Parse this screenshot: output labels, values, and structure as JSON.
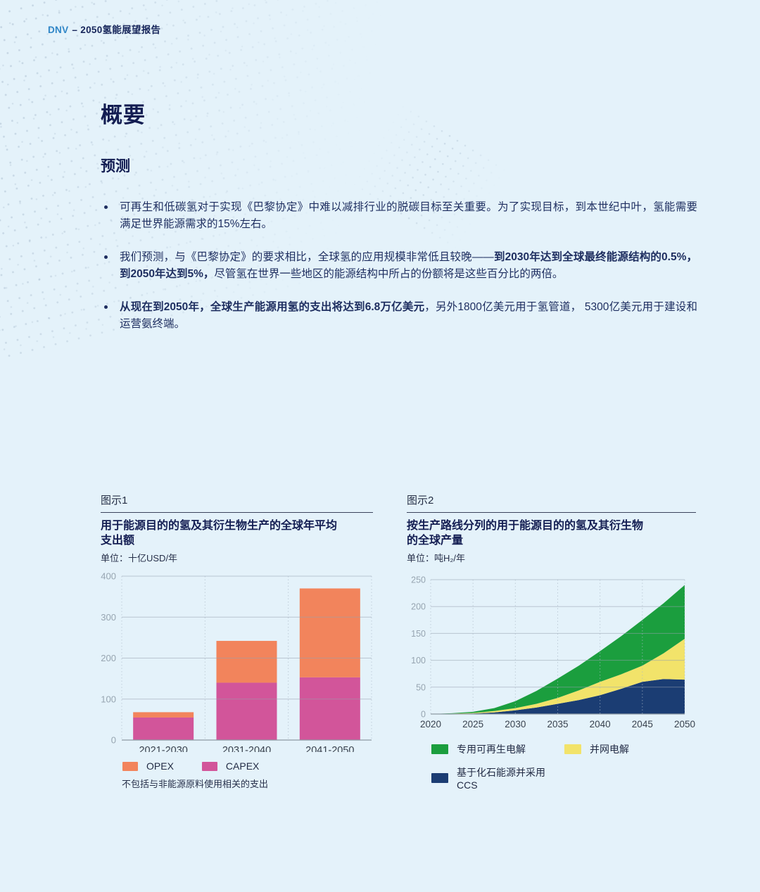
{
  "header": {
    "brand": "DNV",
    "title": "– 2050氢能展望报告"
  },
  "title": "概要",
  "subtitle": "预测",
  "bullets": [
    {
      "segments": [
        {
          "text": "可再生和低碳氢对于实现《巴黎协定》中难以减排行业的脱碳目标至关重要。为了实现目标，到本世纪中叶，氢能需要满足世界能源需求的15%左右。",
          "bold": false
        }
      ]
    },
    {
      "segments": [
        {
          "text": "我们预测，与《巴黎协定》的要求相比，全球氢的应用规模非常低且较晚——",
          "bold": false
        },
        {
          "text": "到2030年达到全球最终能源结构的0.5%，到2050年达到5%，",
          "bold": true
        },
        {
          "text": "尽管氢在世界一些地区的能源结构中所占的份额将是这些百分比的两倍。",
          "bold": false
        }
      ]
    },
    {
      "segments": [
        {
          "text": "从现在到2050年，全球生产能源用氢的支出将达到6.8万亿美元",
          "bold": true
        },
        {
          "text": "，另外1800亿美元用于氢管道， 5300亿美元用于建设和运营氨终端。",
          "bold": false
        }
      ]
    }
  ],
  "figure1": {
    "label": "图示1",
    "title": "用于能源目的的氢及其衍生物生产的全球年平均支出额",
    "unit": "单位：十亿USD/年",
    "footnote": "不包括与非能源原料使用相关的支出",
    "legend": [
      {
        "label": "OPEX",
        "color": "#F2845C"
      },
      {
        "label": "CAPEX",
        "color": "#D2559A"
      }
    ]
  },
  "figure2": {
    "label": "图示2",
    "title": "按生产路线分列的用于能源目的的氢及其衍生物的全球产量",
    "unit": "单位：吨H₂/年",
    "legend": [
      {
        "label": "专用可再生电解",
        "color": "#1B9E3E"
      },
      {
        "label": "并网电解",
        "color": "#F2E36A"
      },
      {
        "label": "基于化石能源并采用CCS",
        "color": "#1B3D73"
      }
    ]
  },
  "chart_data": [
    {
      "type": "bar",
      "stacked": true,
      "title": "用于能源目的的氢及其衍生物生产的全球年平均支出额",
      "unit": "十亿USD/年",
      "categories": [
        "2021-2030",
        "2031-2040",
        "2041-2050"
      ],
      "series": [
        {
          "name": "CAPEX",
          "color": "#D2559A",
          "values": [
            55,
            140,
            153
          ]
        },
        {
          "name": "OPEX",
          "color": "#F2845C",
          "values": [
            13,
            102,
            217
          ]
        }
      ],
      "ylim": [
        0,
        400
      ],
      "yticks": [
        0,
        100,
        200,
        300,
        400
      ],
      "grid": true,
      "legend_position": "bottom"
    },
    {
      "type": "area",
      "stacked": true,
      "title": "按生产路线分列的用于能源目的的氢及其衍生物的全球产量",
      "unit": "吨H₂/年",
      "x": [
        2020,
        2022.5,
        2025,
        2027.5,
        2030,
        2032.5,
        2035,
        2037.5,
        2040,
        2042.5,
        2045,
        2047.5,
        2050
      ],
      "series": [
        {
          "name": "基于化石能源并采用CCS",
          "color": "#1B3D73",
          "values": [
            0,
            0.3,
            1,
            3,
            7,
            12,
            19,
            26,
            35,
            47,
            60,
            65,
            64
          ]
        },
        {
          "name": "并网电解",
          "color": "#F2E36A",
          "values": [
            0,
            0.5,
            1,
            2.5,
            4,
            7,
            11,
            18,
            25,
            27,
            30,
            48,
            76
          ]
        },
        {
          "name": "专用可再生电解",
          "color": "#1B9E3E",
          "values": [
            0,
            0.7,
            2,
            5.5,
            13,
            24,
            36,
            46,
            57,
            71,
            85,
            93,
            100
          ]
        }
      ],
      "xticks": [
        2020,
        2025,
        2030,
        2035,
        2040,
        2045,
        2050
      ],
      "ylim": [
        0,
        250
      ],
      "yticks": [
        0,
        50,
        100,
        150,
        200,
        250
      ],
      "grid": true,
      "legend_position": "bottom"
    }
  ],
  "colors": {
    "background": "#E4F2FA",
    "heading": "#131D52",
    "body_text": "#1D2D5F",
    "brand_blue": "#2F86C7",
    "axis_label_gray": "#97A5B1",
    "tick_label_dark": "#39424E",
    "gridline": "#C3CED6"
  }
}
